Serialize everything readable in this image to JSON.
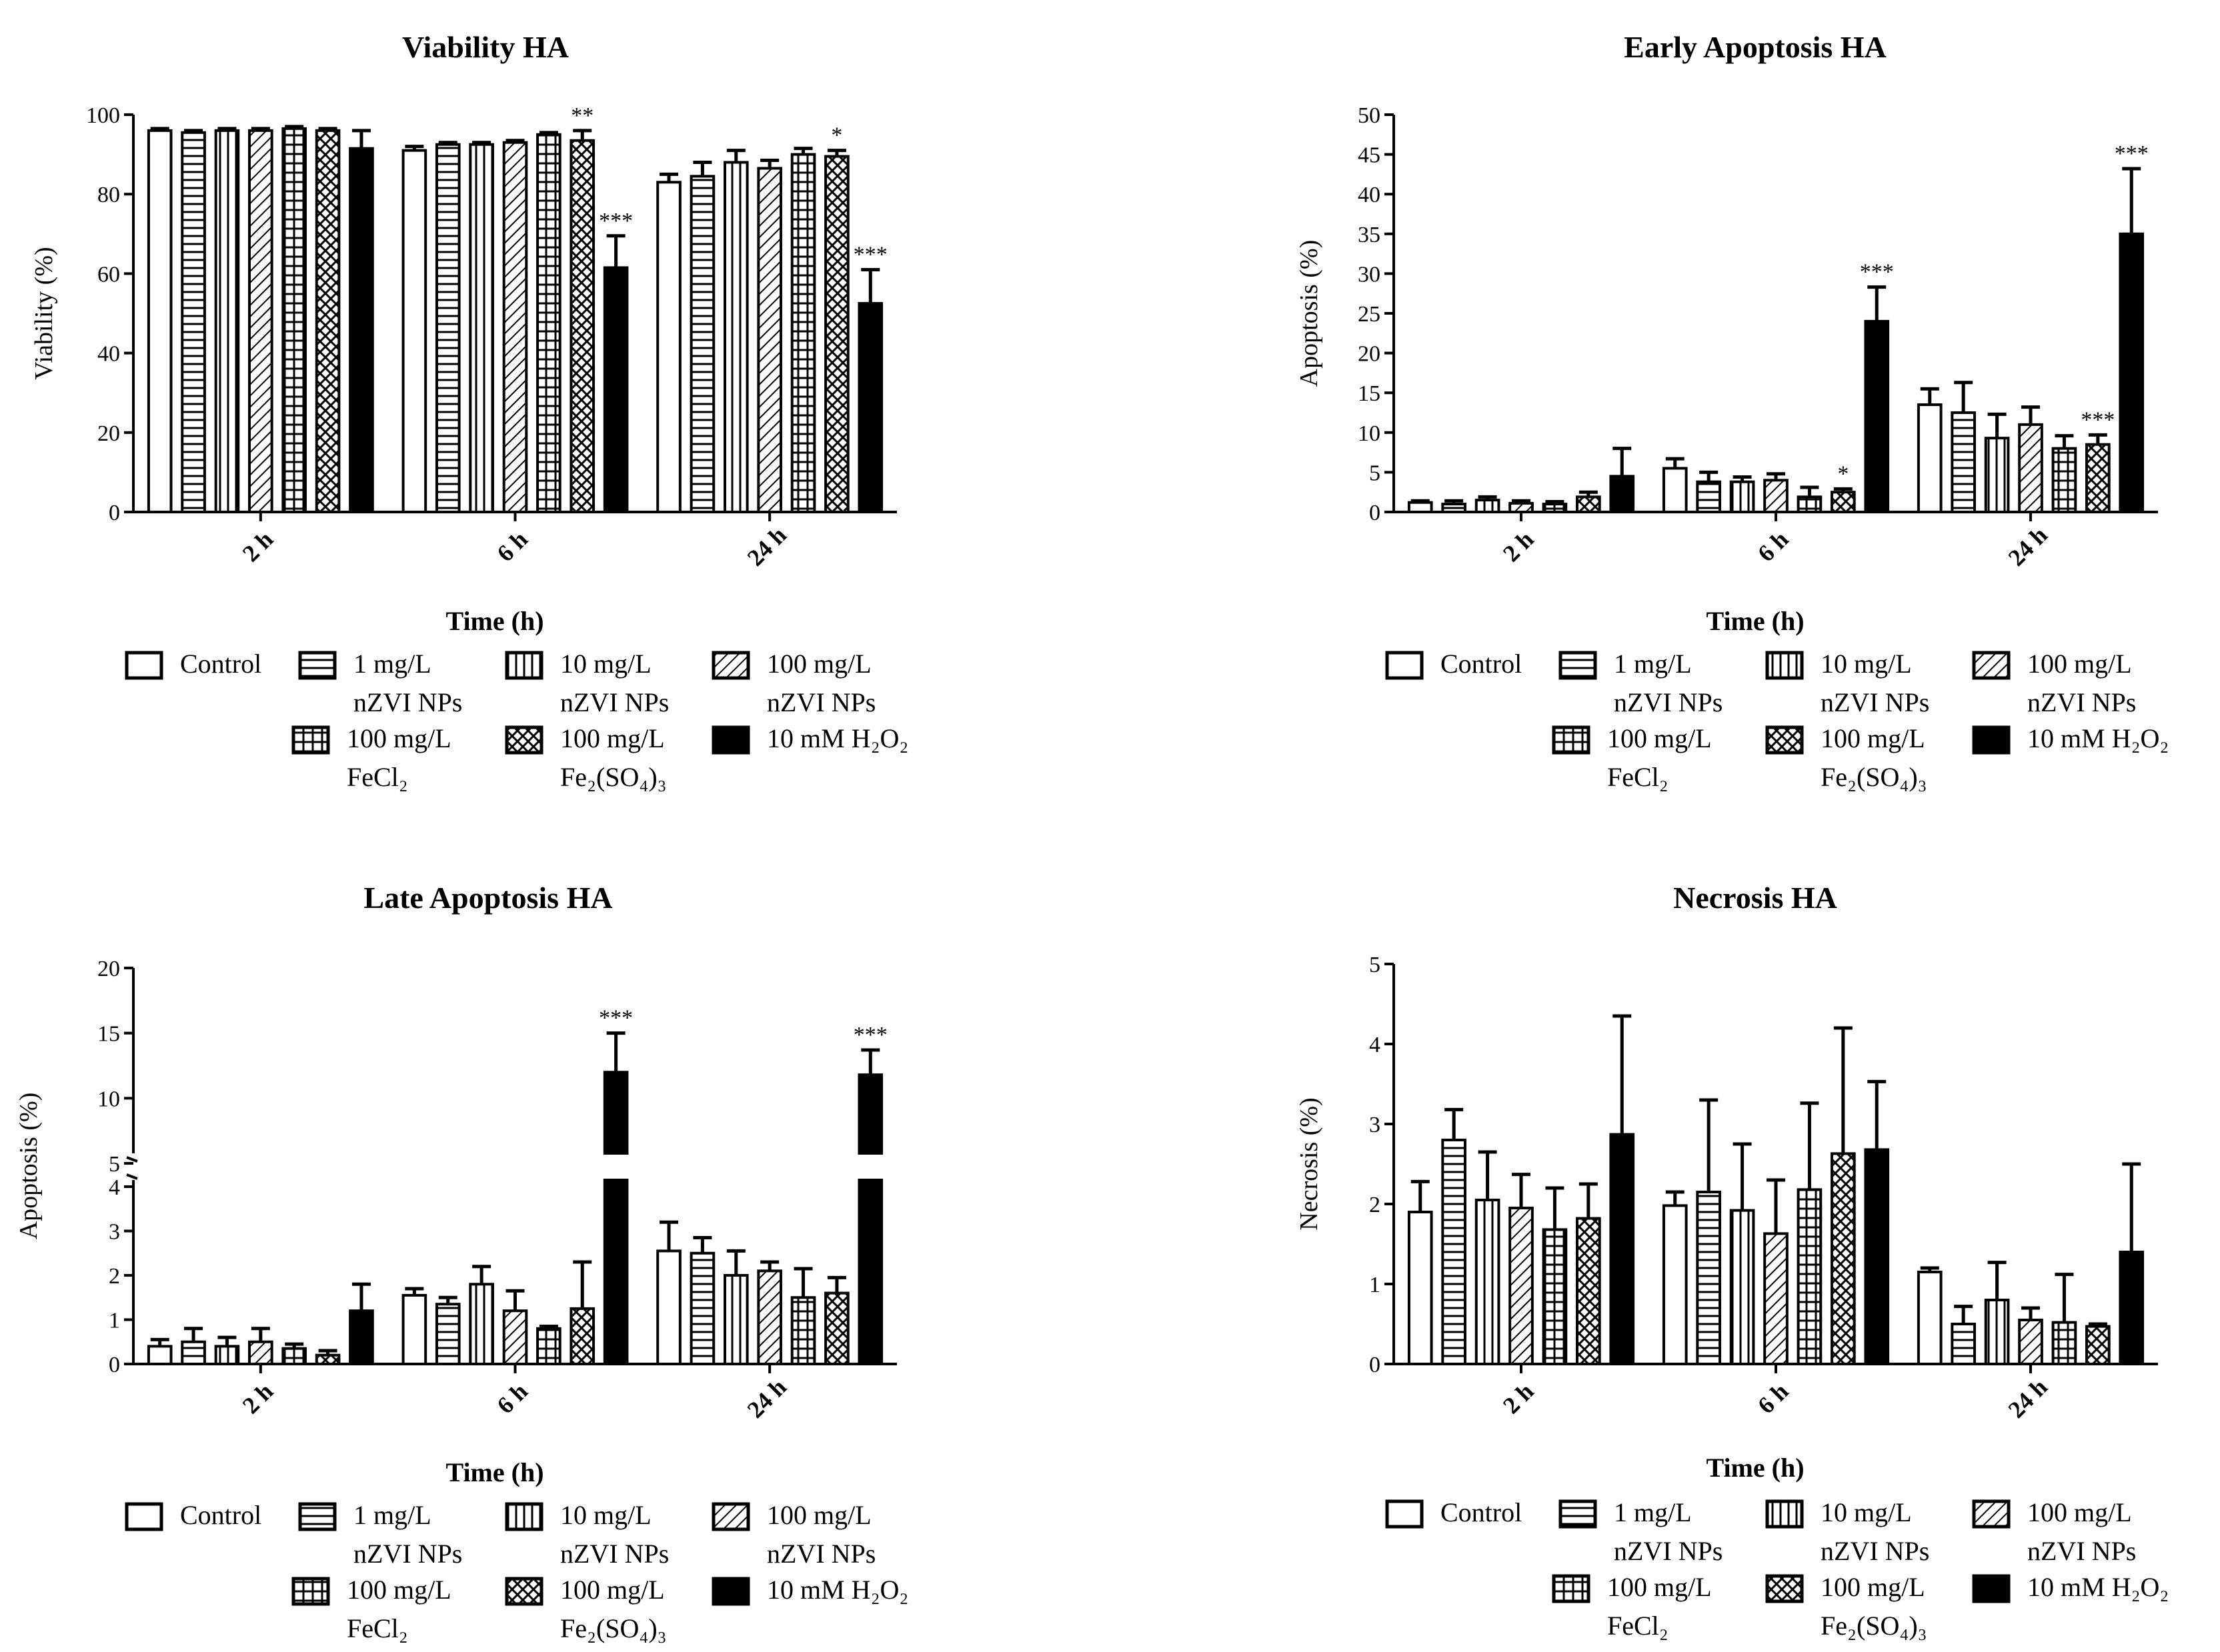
{
  "series_legend": [
    {
      "key": "control",
      "pattern": "none",
      "lines": [
        "Control"
      ]
    },
    {
      "key": "nzvi1",
      "pattern": "hstripe",
      "lines": [
        "1 mg/L",
        "nZVI NPs"
      ]
    },
    {
      "key": "nzvi10",
      "pattern": "vstripe",
      "lines": [
        "10 mg/L",
        "nZVI NPs"
      ]
    },
    {
      "key": "nzvi100",
      "pattern": "diag",
      "lines": [
        "100 mg/L",
        "nZVI NPs"
      ]
    },
    {
      "key": "fecl2",
      "pattern": "grid",
      "lines": [
        "100 mg/L",
        "FeCl₂"
      ]
    },
    {
      "key": "fe2so4",
      "pattern": "cross",
      "lines": [
        "100 mg/L",
        "Fe₂(SO₄)₃"
      ]
    },
    {
      "key": "h2o2",
      "pattern": "solid",
      "lines": [
        "10 mM H₂O₂"
      ]
    }
  ],
  "chart_data": [
    {
      "type": "bar",
      "title": "Viability HA",
      "xlabel": "Time (h)",
      "ylabel": "Viability (%)",
      "categories": [
        "2 h",
        "6 h",
        "24 h"
      ],
      "ylim": [
        0,
        100
      ],
      "yticks": [
        0,
        20,
        40,
        60,
        80,
        100
      ],
      "series": [
        {
          "name": "Control",
          "values": [
            96,
            91,
            83
          ],
          "errors": [
            0.5,
            1,
            2
          ]
        },
        {
          "name": "1 mg/L nZVI NPs",
          "values": [
            95.5,
            92.5,
            84.5
          ],
          "errors": [
            0.5,
            0.5,
            3.5
          ]
        },
        {
          "name": "10 mg/L nZVI NPs",
          "values": [
            96,
            92.5,
            88
          ],
          "errors": [
            0.5,
            0.5,
            3
          ]
        },
        {
          "name": "100 mg/L nZVI NPs",
          "values": [
            96,
            93,
            86.5
          ],
          "errors": [
            0.5,
            0.5,
            2
          ]
        },
        {
          "name": "100 mg/L FeCl2",
          "values": [
            96.5,
            95,
            90
          ],
          "errors": [
            0.5,
            0.5,
            1.5
          ]
        },
        {
          "name": "100 mg/L Fe2(SO4)3",
          "values": [
            96,
            93.5,
            89.5
          ],
          "errors": [
            0.5,
            2.5,
            1.5
          ]
        },
        {
          "name": "10 mM H2O2",
          "values": [
            91.5,
            61.5,
            52.5
          ],
          "errors": [
            4.5,
            8,
            8.5
          ]
        }
      ],
      "annotations": [
        {
          "category": 1,
          "series": 5,
          "text": "**"
        },
        {
          "category": 1,
          "series": 6,
          "text": "***"
        },
        {
          "category": 2,
          "series": 5,
          "text": "*"
        },
        {
          "category": 2,
          "series": 6,
          "text": "***"
        }
      ]
    },
    {
      "type": "bar",
      "title": "Early Apoptosis HA",
      "xlabel": "Time (h)",
      "ylabel": "Apoptosis (%)",
      "categories": [
        "2 h",
        "6 h",
        "24 h"
      ],
      "ylim": [
        0,
        50
      ],
      "yticks": [
        0,
        5,
        10,
        15,
        20,
        25,
        30,
        35,
        40,
        45,
        50
      ],
      "series": [
        {
          "name": "Control",
          "values": [
            1.2,
            5.5,
            13.5
          ],
          "errors": [
            0.2,
            1.2,
            2
          ]
        },
        {
          "name": "1 mg/L nZVI NPs",
          "values": [
            1,
            3.8,
            12.5
          ],
          "errors": [
            0.4,
            1.2,
            3.8
          ]
        },
        {
          "name": "10 mg/L nZVI NPs",
          "values": [
            1.5,
            3.8,
            9.3
          ],
          "errors": [
            0.4,
            0.6,
            3
          ]
        },
        {
          "name": "100 mg/L nZVI NPs",
          "values": [
            1.1,
            4,
            11
          ],
          "errors": [
            0.3,
            0.8,
            2.2
          ]
        },
        {
          "name": "100 mg/L FeCl2",
          "values": [
            1,
            1.9,
            8
          ],
          "errors": [
            0.3,
            1.2,
            1.6
          ]
        },
        {
          "name": "100 mg/L Fe2(SO4)3",
          "values": [
            1.9,
            2.5,
            8.5
          ],
          "errors": [
            0.6,
            0.4,
            1.2
          ]
        },
        {
          "name": "10 mM H2O2",
          "values": [
            4.5,
            24,
            35
          ],
          "errors": [
            3.5,
            4.3,
            8.2
          ]
        }
      ],
      "annotations": [
        {
          "category": 1,
          "series": 5,
          "text": "*"
        },
        {
          "category": 1,
          "series": 6,
          "text": "***"
        },
        {
          "category": 2,
          "series": 5,
          "text": "***"
        },
        {
          "category": 2,
          "series": 6,
          "text": "***"
        }
      ]
    },
    {
      "type": "bar",
      "title": "Late Apoptosis HA",
      "xlabel": "Time (h)",
      "ylabel": "Apoptosis (%)",
      "categories": [
        "2 h",
        "6 h",
        "24 h"
      ],
      "ylim": [
        0,
        20
      ],
      "axis_break": [
        4,
        5
      ],
      "yticks_lower": [
        0,
        1,
        2,
        3,
        4
      ],
      "yticks_upper": [
        5,
        10,
        15,
        20
      ],
      "series": [
        {
          "name": "Control",
          "values": [
            0.4,
            1.55,
            2.55
          ],
          "errors": [
            0.15,
            0.15,
            0.65
          ]
        },
        {
          "name": "1 mg/L nZVI NPs",
          "values": [
            0.5,
            1.35,
            2.5
          ],
          "errors": [
            0.3,
            0.15,
            0.35
          ]
        },
        {
          "name": "10 mg/L nZVI NPs",
          "values": [
            0.4,
            1.8,
            2
          ],
          "errors": [
            0.2,
            0.4,
            0.55
          ]
        },
        {
          "name": "100 mg/L nZVI NPs",
          "values": [
            0.5,
            1.2,
            2.1
          ],
          "errors": [
            0.3,
            0.45,
            0.2
          ]
        },
        {
          "name": "100 mg/L FeCl2",
          "values": [
            0.35,
            0.8,
            1.5
          ],
          "errors": [
            0.1,
            0.05,
            0.65
          ]
        },
        {
          "name": "100 mg/L Fe2(SO4)3",
          "values": [
            0.2,
            1.25,
            1.6
          ],
          "errors": [
            0.1,
            1.05,
            0.35
          ]
        },
        {
          "name": "10 mM H2O2",
          "values": [
            1.2,
            12,
            11.8
          ],
          "errors": [
            0.6,
            3,
            1.9
          ]
        }
      ],
      "annotations": [
        {
          "category": 1,
          "series": 6,
          "text": "***"
        },
        {
          "category": 2,
          "series": 6,
          "text": "***"
        }
      ]
    },
    {
      "type": "bar",
      "title": "Necrosis HA",
      "xlabel": "Time (h)",
      "ylabel": "Necrosis (%)",
      "categories": [
        "2 h",
        "6 h",
        "24 h"
      ],
      "ylim": [
        0,
        5
      ],
      "yticks": [
        0,
        1,
        2,
        3,
        4,
        5
      ],
      "series": [
        {
          "name": "Control",
          "values": [
            1.9,
            1.98,
            1.15
          ],
          "errors": [
            0.38,
            0.17,
            0.05
          ]
        },
        {
          "name": "1 mg/L nZVI NPs",
          "values": [
            2.8,
            2.15,
            0.5
          ],
          "errors": [
            0.38,
            1.15,
            0.22
          ]
        },
        {
          "name": "10 mg/L nZVI NPs",
          "values": [
            2.05,
            1.92,
            0.8
          ],
          "errors": [
            0.6,
            0.83,
            0.47
          ]
        },
        {
          "name": "100 mg/L nZVI NPs",
          "values": [
            1.95,
            1.63,
            0.55
          ],
          "errors": [
            0.42,
            0.67,
            0.15
          ]
        },
        {
          "name": "100 mg/L FeCl2",
          "values": [
            1.68,
            2.18,
            0.52
          ],
          "errors": [
            0.52,
            1.08,
            0.6
          ]
        },
        {
          "name": "100 mg/L Fe2(SO4)3",
          "values": [
            1.82,
            2.63,
            0.47
          ],
          "errors": [
            0.43,
            1.57,
            0.03
          ]
        },
        {
          "name": "10 mM H2O2",
          "values": [
            2.87,
            2.68,
            1.4
          ],
          "errors": [
            1.48,
            0.85,
            1.1
          ]
        }
      ],
      "annotations": []
    }
  ]
}
